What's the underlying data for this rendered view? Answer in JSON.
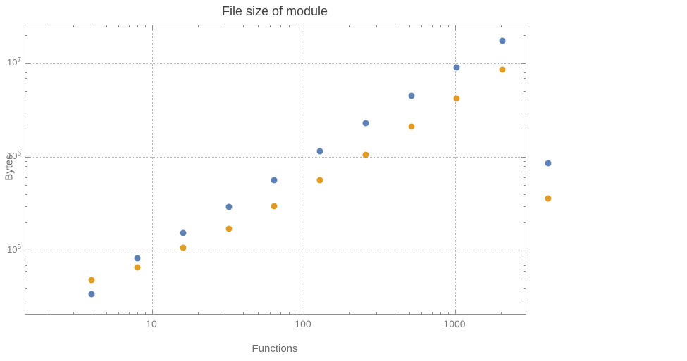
{
  "title": "File size of module",
  "axes": {
    "x_label": "Functions",
    "y_label": "Bytes"
  },
  "style": {
    "background": "#ffffff",
    "frame_color": "#8f8f8f",
    "grid_color": "#b9b9b9",
    "tick_label_color": "#7c7c7c",
    "title_color": "#3f3f3f",
    "axis_label_color": "#6d6d6d",
    "series_blue_color": "#5E81B5",
    "series_orange_color": "#E19C24"
  },
  "chart_data": {
    "type": "scatter",
    "title": "File size of module",
    "xlabel": "Functions",
    "ylabel": "Bytes",
    "x_scale": "log",
    "y_scale": "log",
    "grid": "dotted gridlines at decade ticks",
    "legend": "none",
    "x": [
      4,
      8,
      16,
      32,
      64,
      128,
      256,
      512,
      1024,
      2048,
      4096
    ],
    "series": [
      {
        "name": "series-blue",
        "color": "#5E81B5",
        "values": [
          34000,
          82000,
          155000,
          290000,
          560000,
          1150000,
          2300000,
          4500000,
          9000000,
          17500000,
          850000
        ]
      },
      {
        "name": "series-orange",
        "color": "#E19C24",
        "values": [
          48000,
          66000,
          108000,
          170000,
          300000,
          560000,
          1050000,
          2100000,
          4200000,
          8500000,
          360000
        ]
      }
    ],
    "x_ticks": [
      {
        "label": "10",
        "value": 10
      },
      {
        "label": "100",
        "value": 100
      },
      {
        "label": "1000",
        "value": 1000
      }
    ],
    "y_ticks": [
      {
        "base": "10",
        "exp": "5",
        "value": 100000
      },
      {
        "base": "10",
        "exp": "6",
        "value": 1000000
      },
      {
        "base": "10",
        "exp": "7",
        "value": 10000000
      }
    ],
    "xlog_range": [
      0.163,
      3.465
    ],
    "ylog_range": [
      4.323,
      7.406
    ]
  }
}
